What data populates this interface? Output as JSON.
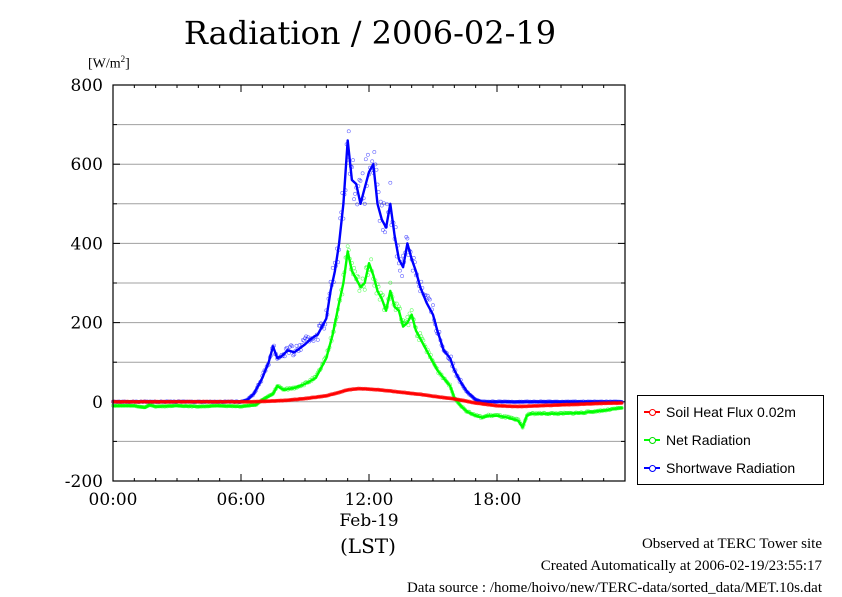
{
  "chart_data": {
    "type": "line",
    "title": "Radiation / 2006-02-19",
    "ylabel_prefix": "[W/m",
    "ylabel_sup": "2",
    "ylabel_suffix": "]",
    "ylim": [
      -200,
      800
    ],
    "yticks": [
      "800",
      "600",
      "400",
      "200",
      "0",
      "-200"
    ],
    "xlim": [
      0,
      24
    ],
    "xticks": [
      "00:00",
      "06:00",
      "12:00",
      "18:00"
    ],
    "xtick_sublabel": "Feb-19",
    "xlabel": "(LST)",
    "grid": true,
    "legend_position": "outside-right",
    "series": [
      {
        "name": "Soil Heat Flux 0.02m",
        "color": "#ff0000",
        "x": [
          0,
          6.5,
          7,
          8,
          9,
          10,
          10.5,
          11,
          11.5,
          12,
          12.5,
          13,
          13.5,
          14,
          14.5,
          15,
          16,
          17,
          18,
          19,
          20,
          21,
          22,
          23,
          23.9
        ],
        "values": [
          0,
          0,
          1,
          3,
          8,
          15,
          22,
          30,
          33,
          32,
          30,
          27,
          24,
          21,
          18,
          14,
          7,
          -3,
          -10,
          -12,
          -10,
          -8,
          -6,
          -4,
          -3
        ]
      },
      {
        "name": "Net Radiation",
        "color": "#00ff00",
        "x": [
          0,
          1,
          1.5,
          1.7,
          2,
          3,
          4,
          5,
          6,
          6.3,
          6.7,
          7,
          7.5,
          7.7,
          8,
          8.5,
          9,
          9.5,
          10,
          10.3,
          10.6,
          10.8,
          11,
          11.2,
          11.4,
          11.6,
          11.8,
          12,
          12.2,
          12.4,
          12.6,
          12.8,
          13,
          13.2,
          13.4,
          13.6,
          13.8,
          14,
          14.2,
          14.5,
          14.8,
          15,
          15.2,
          15.5,
          15.8,
          16,
          16.3,
          16.6,
          17,
          17.3,
          17.6,
          18,
          18.5,
          19,
          19.2,
          19.4,
          19.6,
          20,
          21,
          22,
          23,
          23.9
        ],
        "values": [
          -10,
          -10,
          -15,
          -8,
          -12,
          -10,
          -12,
          -10,
          -12,
          -10,
          -8,
          5,
          20,
          40,
          30,
          35,
          45,
          60,
          110,
          170,
          250,
          300,
          380,
          330,
          310,
          290,
          300,
          350,
          320,
          280,
          260,
          230,
          280,
          240,
          230,
          190,
          200,
          220,
          180,
          150,
          120,
          100,
          80,
          60,
          40,
          10,
          -10,
          -25,
          -35,
          -40,
          -35,
          -35,
          -40,
          -48,
          -65,
          -35,
          -30,
          -30,
          -30,
          -28,
          -22,
          -15
        ]
      },
      {
        "name": "Shortwave Radiation",
        "color": "#0000ff",
        "x": [
          0,
          1,
          2,
          3,
          4,
          5,
          6,
          6.3,
          6.6,
          7,
          7.3,
          7.5,
          7.7,
          7.9,
          8.2,
          8.5,
          9,
          9.3,
          9.6,
          10,
          10.2,
          10.4,
          10.6,
          10.8,
          11,
          11.2,
          11.4,
          11.6,
          11.8,
          12,
          12.2,
          12.4,
          12.6,
          12.8,
          13,
          13.2,
          13.4,
          13.6,
          13.8,
          14,
          14.2,
          14.4,
          14.7,
          15,
          15.2,
          15.5,
          15.8,
          16,
          16.3,
          16.6,
          17,
          17.3,
          17.5,
          18,
          19,
          20,
          21,
          22,
          23,
          23.9
        ],
        "values": [
          0,
          0,
          0,
          0,
          0,
          0,
          0,
          5,
          20,
          60,
          100,
          140,
          110,
          115,
          130,
          125,
          145,
          160,
          170,
          210,
          280,
          330,
          400,
          500,
          660,
          560,
          550,
          500,
          540,
          580,
          600,
          500,
          460,
          440,
          500,
          420,
          360,
          340,
          400,
          360,
          330,
          290,
          250,
          220,
          180,
          130,
          110,
          80,
          50,
          25,
          5,
          0,
          0,
          0,
          0,
          0,
          0,
          0,
          0,
          0
        ]
      }
    ]
  },
  "footer": {
    "line1": "Observed at TERC Tower site",
    "line2": "Created Automatically at 2006-02-19/23:55:17",
    "line3": "Data source : /home/hoivo/new/TERC-data/sorted_data/MET.10s.dat"
  }
}
